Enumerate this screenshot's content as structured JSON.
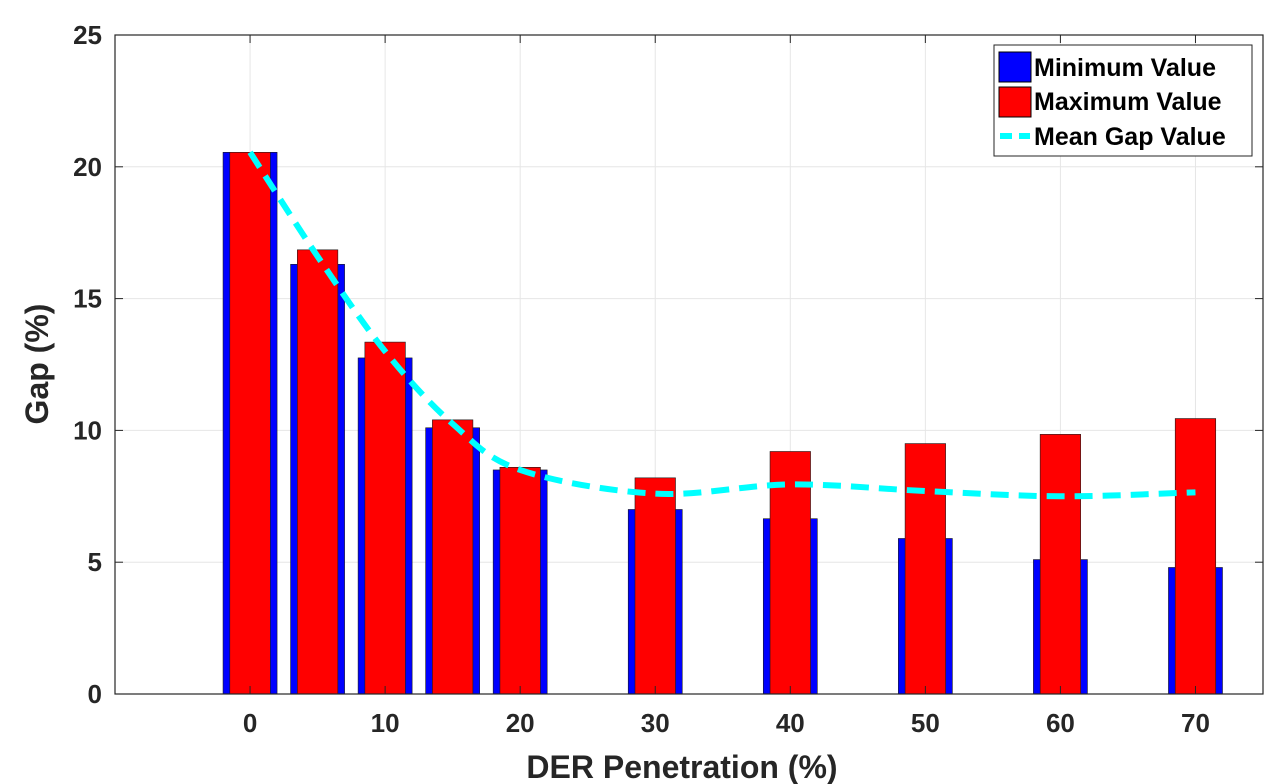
{
  "chart_data": {
    "type": "bar",
    "title": "",
    "xlabel": "DER Penetration (%)",
    "ylabel": "Gap (%)",
    "xlim": [
      -10,
      75
    ],
    "ylim": [
      0,
      25
    ],
    "xticks": [
      "0",
      "10",
      "20",
      "30",
      "40",
      "50",
      "60",
      "70"
    ],
    "yticks": [
      "0",
      "5",
      "10",
      "15",
      "20",
      "25"
    ],
    "grid": true,
    "legend_position": "top-right",
    "x": [
      0,
      5,
      10,
      15,
      20,
      30,
      40,
      50,
      60,
      70
    ],
    "series": [
      {
        "name": "Minimum Value",
        "type": "bar",
        "color": "#0000ff",
        "values": [
          20.55,
          16.3,
          12.75,
          10.1,
          8.5,
          7.0,
          6.65,
          5.9,
          5.1,
          4.8
        ]
      },
      {
        "name": "Maximum Value",
        "type": "bar",
        "color": "#ff0000",
        "values": [
          20.55,
          16.85,
          13.35,
          10.4,
          8.6,
          8.2,
          9.2,
          9.5,
          9.85,
          10.45
        ]
      },
      {
        "name": "Mean Gap Value",
        "type": "line",
        "style": "dashed",
        "color": "#00ffff",
        "values": [
          20.55,
          16.6,
          13.0,
          10.25,
          8.5,
          7.6,
          7.95,
          7.7,
          7.5,
          7.65
        ]
      }
    ]
  }
}
